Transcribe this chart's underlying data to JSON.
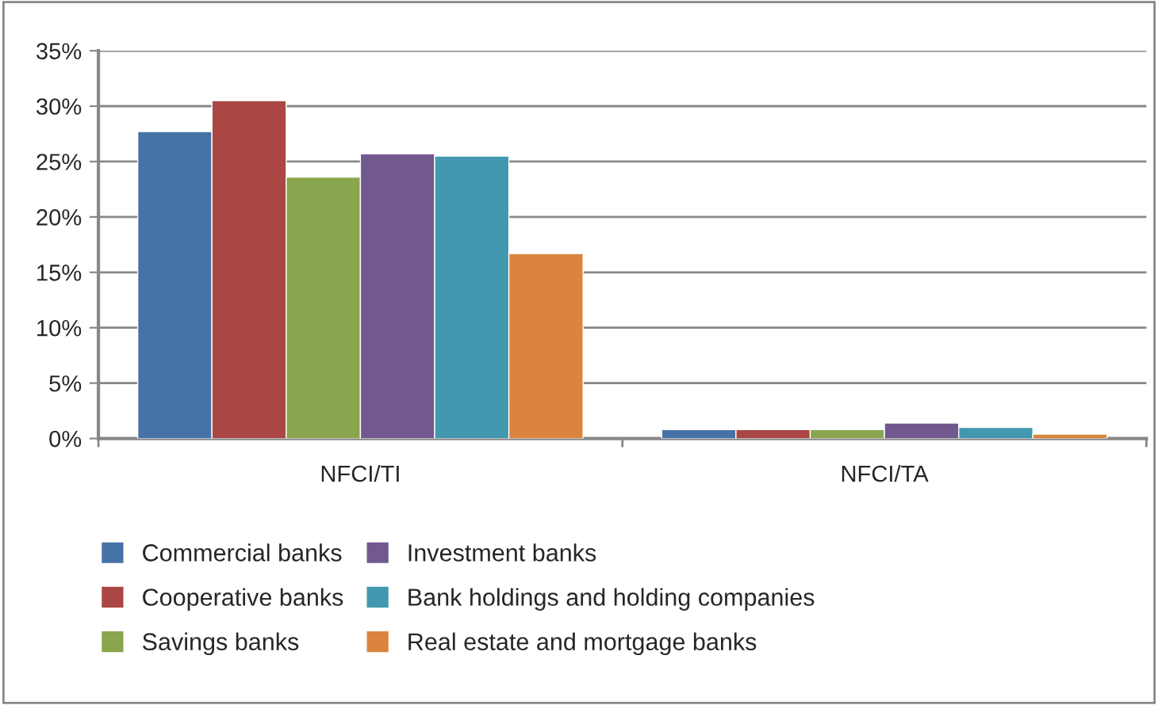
{
  "chart_data": {
    "type": "bar",
    "categories": [
      "NFCI/TI",
      "NFCI/TA"
    ],
    "series": [
      {
        "name": "Commercial banks",
        "color": "#4572a7",
        "values": [
          27.7,
          0.8
        ]
      },
      {
        "name": "Cooperative banks",
        "color": "#aa4643",
        "values": [
          30.5,
          0.8
        ]
      },
      {
        "name": "Savings banks",
        "color": "#89a54e",
        "values": [
          23.6,
          0.8
        ]
      },
      {
        "name": "Investment banks",
        "color": "#71588f",
        "values": [
          25.7,
          1.4
        ]
      },
      {
        "name": "Bank holdings and holding companies",
        "color": "#4198af",
        "values": [
          25.5,
          1.0
        ]
      },
      {
        "name": "Real estate and mortgage banks",
        "color": "#db843d",
        "values": [
          16.7,
          0.4
        ]
      }
    ],
    "ylim": [
      0,
      35
    ],
    "yticks": [
      {
        "value": 0,
        "label": "0%"
      },
      {
        "value": 5,
        "label": "5%"
      },
      {
        "value": 10,
        "label": "10%"
      },
      {
        "value": 15,
        "label": "15%"
      },
      {
        "value": 20,
        "label": "20%"
      },
      {
        "value": 25,
        "label": "25%"
      },
      {
        "value": 30,
        "label": "30%"
      },
      {
        "value": 35,
        "label": "35%"
      }
    ],
    "grid": "y",
    "legend": "bottom"
  }
}
